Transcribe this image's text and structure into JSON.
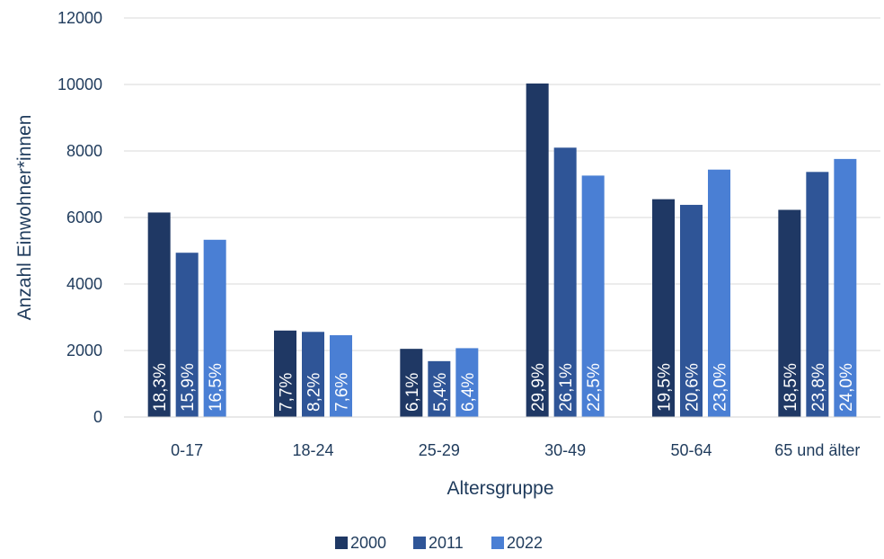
{
  "chart_data": {
    "type": "bar",
    "xlabel": "Altersgruppe",
    "ylabel": "Anzahl Einwohner*innen",
    "ylim": [
      0,
      12000
    ],
    "yticks": [
      0,
      2000,
      4000,
      6000,
      8000,
      10000,
      12000
    ],
    "grid": true,
    "legend_position": "bottom",
    "categories": [
      "0-17",
      "18-24",
      "25-29",
      "30-49",
      "50-64",
      "65 und älter"
    ],
    "series": [
      {
        "name": "2000",
        "color": "#1f3864",
        "values": [
          6150,
          2600,
          2050,
          10030,
          6550,
          6230
        ],
        "labels": [
          "18,3%",
          "7,7%",
          "6,1%",
          "29,9%",
          "19,5%",
          "18,5%"
        ]
      },
      {
        "name": "2011",
        "color": "#2f5597",
        "values": [
          4940,
          2560,
          1680,
          8100,
          6380,
          7370
        ],
        "labels": [
          "15,9%",
          "8,2%",
          "5,4%",
          "26,1%",
          "20,6%",
          "23,8%"
        ]
      },
      {
        "name": "2022",
        "color": "#4a7fd4",
        "values": [
          5330,
          2460,
          2070,
          7260,
          7440,
          7760
        ],
        "labels": [
          "16,5%",
          "7,6%",
          "6,4%",
          "22,5%",
          "23,0%",
          "24,0%"
        ]
      }
    ]
  }
}
